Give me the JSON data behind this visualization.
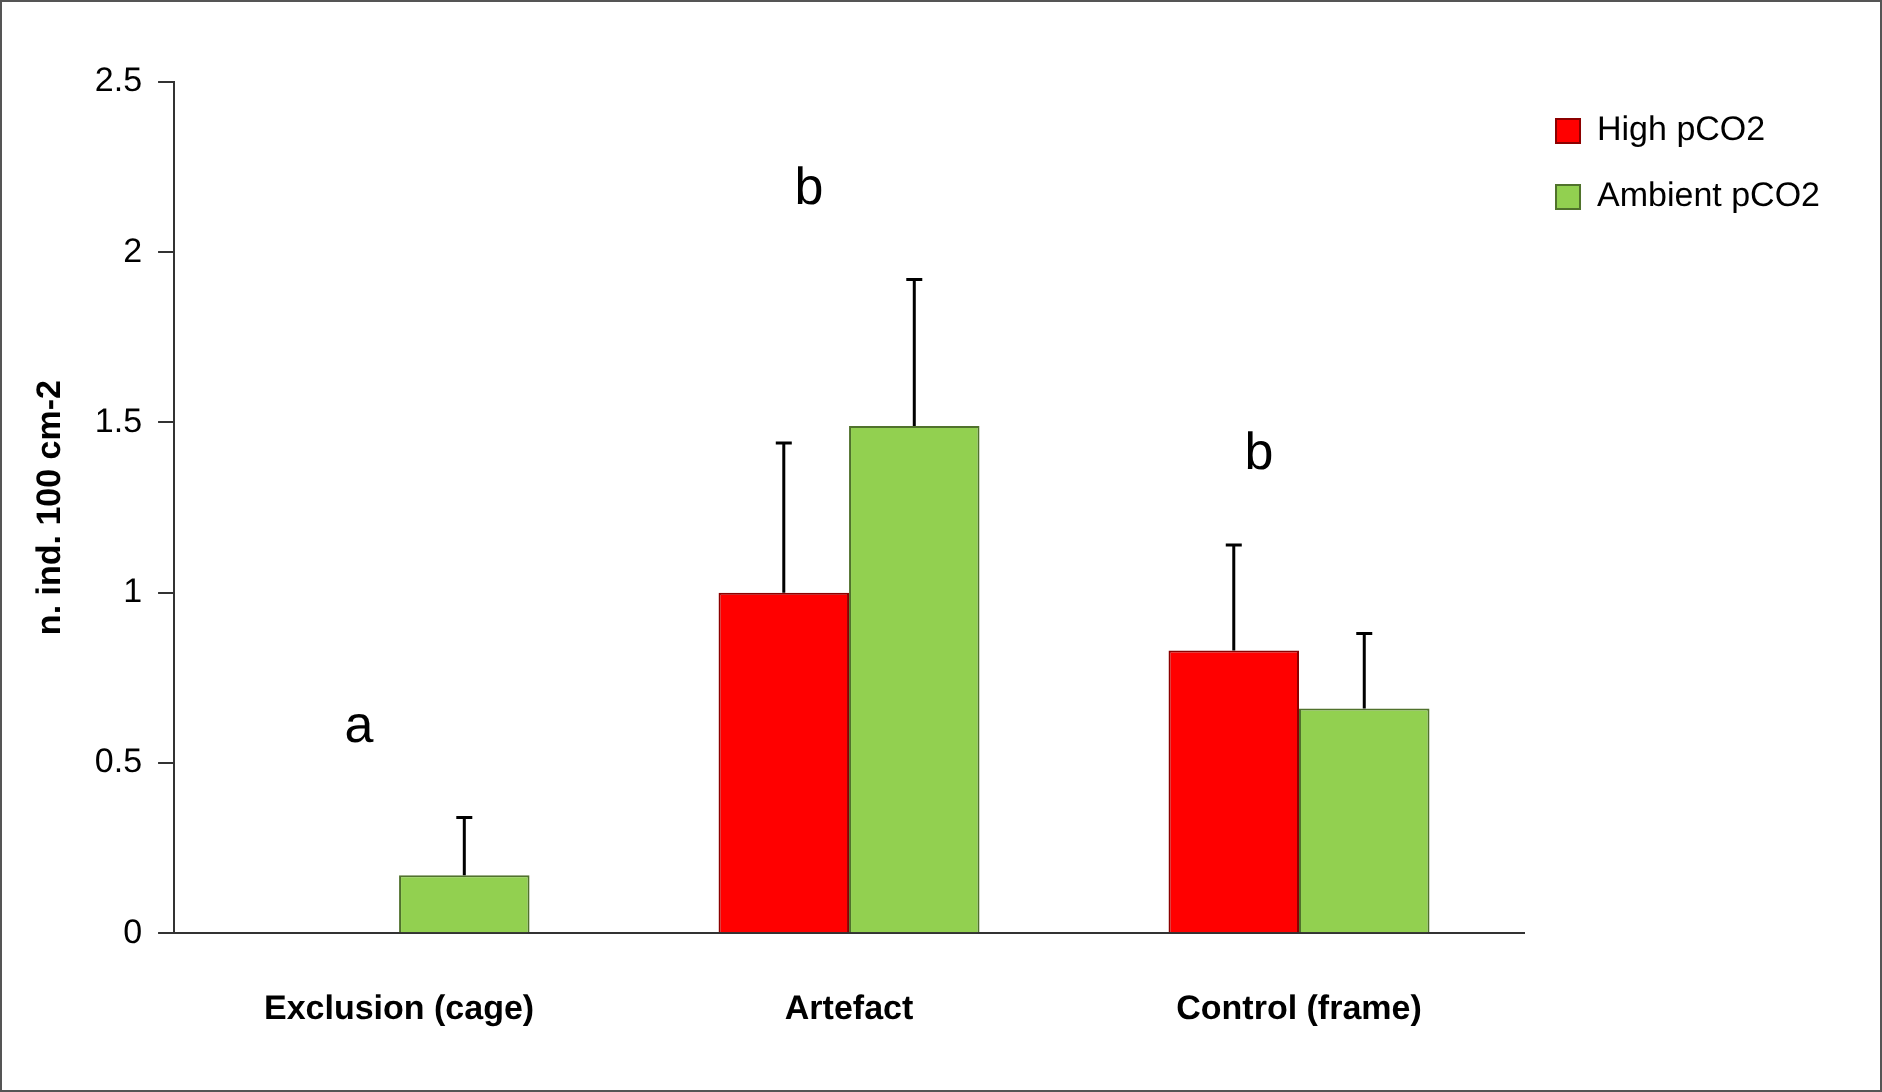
{
  "chart_data": {
    "type": "bar",
    "ylabel": "n. ind. 100 cm-2",
    "categories": [
      "Exclusion (cage)",
      "Artefact",
      "Control (frame)"
    ],
    "series": [
      {
        "name": "High pCO2",
        "color": "#ff0000",
        "values": [
          null,
          1.0,
          0.83
        ],
        "errors": [
          null,
          [
            1.0,
            1.44
          ],
          [
            0.83,
            1.14
          ]
        ]
      },
      {
        "name": "Ambient pCO2",
        "color": "#92d050",
        "values": [
          0.17,
          1.49,
          0.66
        ],
        "errors": [
          [
            0.17,
            0.34
          ],
          [
            1.49,
            1.92
          ],
          [
            0.66,
            0.88
          ]
        ]
      }
    ],
    "ylim": [
      0,
      2.5
    ],
    "yticks": [
      0,
      0.5,
      1,
      1.5,
      2,
      2.5
    ],
    "grid": false,
    "legend": "top right",
    "annotations": [
      "a",
      "b",
      "b"
    ]
  }
}
